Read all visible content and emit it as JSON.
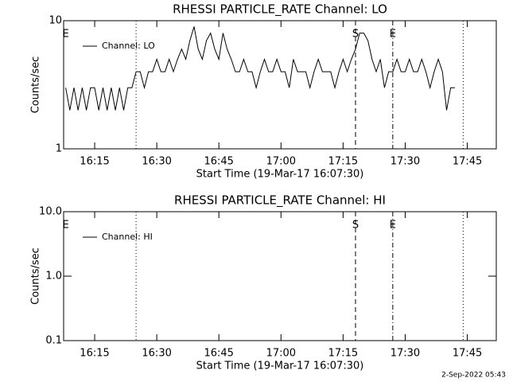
{
  "chart_data": [
    {
      "type": "line",
      "title": "RHESSI PARTICLE_RATE Channel: LO",
      "xlabel": "Start Time (19-Mar-17 16:07:30)",
      "ylabel": "Counts/sec",
      "log_y": true,
      "xlim": [
        "16:07:30",
        "17:52:00"
      ],
      "xticks": [
        "16:15",
        "16:30",
        "16:45",
        "17:00",
        "17:15",
        "17:30",
        "17:45"
      ],
      "ylim": [
        1,
        10
      ],
      "yticks": [
        1,
        10
      ],
      "legend": "upper left",
      "x": [
        "16:08",
        "16:09",
        "16:10",
        "16:11",
        "16:12",
        "16:13",
        "16:14",
        "16:15",
        "16:16",
        "16:17",
        "16:18",
        "16:19",
        "16:20",
        "16:21",
        "16:22",
        "16:23",
        "16:24",
        "16:25",
        "16:26",
        "16:27",
        "16:28",
        "16:29",
        "16:30",
        "16:31",
        "16:32",
        "16:33",
        "16:34",
        "16:35",
        "16:36",
        "16:37",
        "16:38",
        "16:39",
        "16:40",
        "16:41",
        "16:42",
        "16:43",
        "16:44",
        "16:45",
        "16:46",
        "16:47",
        "16:48",
        "16:49",
        "16:50",
        "16:51",
        "16:52",
        "16:53",
        "16:54",
        "16:55",
        "16:56",
        "16:57",
        "16:58",
        "16:59",
        "17:00",
        "17:01",
        "17:02",
        "17:03",
        "17:04",
        "17:05",
        "17:06",
        "17:07",
        "17:08",
        "17:09",
        "17:10",
        "17:11",
        "17:12",
        "17:13",
        "17:14",
        "17:15",
        "17:16",
        "17:17",
        "17:18",
        "17:19",
        "17:20",
        "17:21",
        "17:22",
        "17:23",
        "17:24",
        "17:25",
        "17:26",
        "17:27",
        "17:28",
        "17:29",
        "17:30",
        "17:31",
        "17:32",
        "17:33",
        "17:34",
        "17:35",
        "17:36",
        "17:37",
        "17:38",
        "17:39",
        "17:40",
        "17:41",
        "17:42"
      ],
      "series": [
        {
          "name": "Channel: LO",
          "color": "#000000",
          "values": [
            3,
            2,
            3,
            2,
            3,
            2,
            3,
            3,
            2,
            3,
            2,
            3,
            2,
            3,
            2,
            3,
            3,
            4,
            4,
            3,
            4,
            4,
            5,
            4,
            4,
            5,
            4,
            5,
            6,
            5,
            7,
            9,
            6,
            5,
            7,
            8,
            6,
            5,
            8,
            6,
            5,
            4,
            4,
            5,
            4,
            4,
            3,
            4,
            5,
            4,
            4,
            5,
            4,
            4,
            3,
            5,
            4,
            4,
            4,
            3,
            4,
            5,
            4,
            4,
            4,
            3,
            4,
            5,
            4,
            5,
            6,
            8,
            8,
            7,
            5,
            4,
            5,
            3,
            4,
            4,
            5,
            4,
            4,
            5,
            4,
            4,
            5,
            4,
            3,
            4,
            5,
            4,
            2,
            3,
            3
          ]
        }
      ],
      "vlines": [
        {
          "x": "16:25",
          "style": "dotted"
        },
        {
          "x": "17:18",
          "style": "dashed"
        },
        {
          "x": "17:27",
          "style": "dashdot"
        },
        {
          "x": "17:44",
          "style": "dotted"
        }
      ],
      "annotations": [
        {
          "x": "16:08",
          "text": "E"
        },
        {
          "x": "17:18",
          "text": "S"
        },
        {
          "x": "17:27",
          "text": "E"
        }
      ]
    },
    {
      "type": "line",
      "title": "RHESSI PARTICLE_RATE Channel: HI",
      "xlabel": "Start Time (19-Mar-17 16:07:30)",
      "ylabel": "Counts/sec",
      "log_y": true,
      "xlim": [
        "16:07:30",
        "17:52:00"
      ],
      "xticks": [
        "16:15",
        "16:30",
        "16:45",
        "17:00",
        "17:15",
        "17:30",
        "17:45"
      ],
      "ylim": [
        0.1,
        10
      ],
      "yticks": [
        0.1,
        {
          "value": 1,
          "label": "1.0"
        },
        {
          "value": 10,
          "label": "10.0"
        }
      ],
      "legend": "upper left",
      "x": [],
      "series": [
        {
          "name": "Channel: HI",
          "color": "#000000",
          "values": []
        }
      ],
      "vlines": [
        {
          "x": "16:25",
          "style": "dotted"
        },
        {
          "x": "17:18",
          "style": "dashed"
        },
        {
          "x": "17:27",
          "style": "dashdot"
        },
        {
          "x": "17:44",
          "style": "dotted"
        }
      ],
      "annotations": [
        {
          "x": "16:08",
          "text": "E"
        },
        {
          "x": "17:18",
          "text": "S"
        },
        {
          "x": "17:27",
          "text": "E"
        }
      ]
    }
  ],
  "footer": "2-Sep-2022 05:43"
}
